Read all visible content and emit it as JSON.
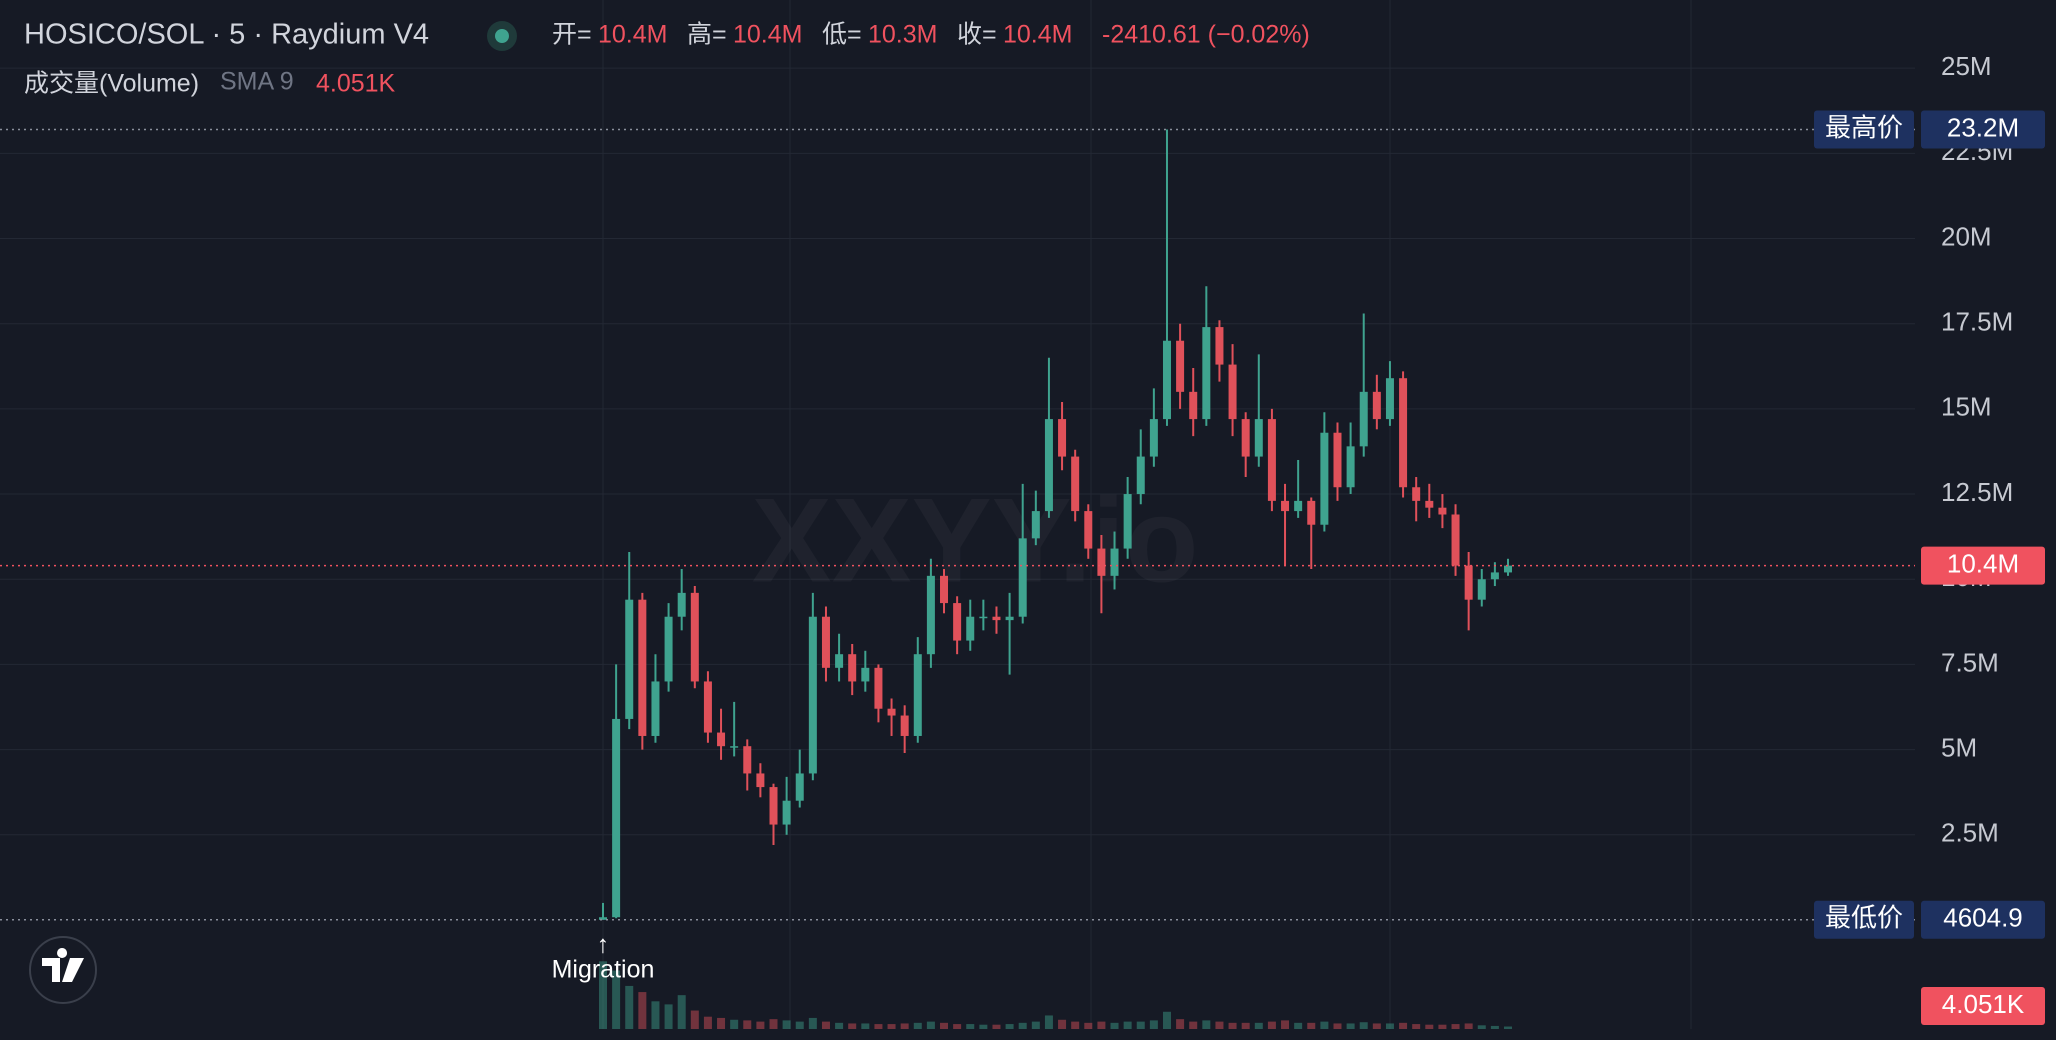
{
  "chart_data": {
    "type": "candlestick",
    "title": "HOSICO/SOL · 5 · Raydium V4",
    "ohlc_header": [
      {
        "name": "开=",
        "value": 10400000,
        "label": "10.4M"
      },
      {
        "name": "高=",
        "value": 10400000,
        "label": "10.4M"
      },
      {
        "name": "低=",
        "value": 10300000,
        "label": "10.3M"
      },
      {
        "name": "收=",
        "value": 10400000,
        "label": "10.4M"
      }
    ],
    "change": "-2410.61 (−0.02%)",
    "volume_title": "成交量(Volume)",
    "volume_sma": "SMA 9",
    "volume_last": {
      "value": 4051,
      "label": "4.051K"
    },
    "watermark": "XXYY.io",
    "annotation": {
      "arrow": "↑",
      "text": "Migration"
    },
    "up_color": "#3fa38f",
    "down_color": "#e0515a",
    "grid": true,
    "ylim": [
      -3200000,
      27000000
    ],
    "yticks": [
      {
        "value": 2500000,
        "label": "2.5M"
      },
      {
        "value": 5000000,
        "label": "5M"
      },
      {
        "value": 7500000,
        "label": "7.5M"
      },
      {
        "value": 10000000,
        "label": "10M"
      },
      {
        "value": 12500000,
        "label": "12.5M"
      },
      {
        "value": 15000000,
        "label": "15M"
      },
      {
        "value": 17500000,
        "label": "17.5M"
      },
      {
        "value": 20000000,
        "label": "20M"
      },
      {
        "value": 22500000,
        "label": "22.5M"
      },
      {
        "value": 25000000,
        "label": "25M"
      }
    ],
    "high_marker": {
      "name": "最高价",
      "value": 23200000,
      "label": "23.2M"
    },
    "low_marker": {
      "name": "最低价",
      "value": 4604.9,
      "label": "4604.9"
    },
    "last_price": {
      "value": 10400000,
      "label": "10.4M"
    },
    "categories": [
      null,
      null,
      null,
      null,
      null,
      null,
      null,
      null,
      null,
      null,
      null,
      null,
      null,
      null,
      null,
      null,
      null,
      null,
      null,
      null,
      null,
      null,
      null,
      null,
      null,
      null,
      null,
      null,
      null,
      null,
      null,
      null,
      null,
      null,
      null,
      null,
      null,
      null,
      null,
      null,
      null,
      null,
      null,
      null,
      null,
      null,
      null,
      null,
      null,
      null,
      null,
      null,
      null,
      null,
      null,
      null,
      null,
      null,
      null,
      null,
      null,
      null,
      null,
      null,
      null,
      null,
      null,
      null,
      null,
      null
    ],
    "open": [
      4604.9,
      80000.0,
      5900000.0,
      9400000.0,
      5400000.0,
      7000000.0,
      8900000.0,
      9600000.0,
      7000000.0,
      5500000.0,
      5100000.0,
      5100000.0,
      4300000.0,
      3900000.0,
      2800000.0,
      3500000.0,
      4300000.0,
      8900000.0,
      7400000.0,
      7800000.0,
      7000000.0,
      7400000.0,
      6200000.0,
      6000000.0,
      5400000.0,
      7800000.0,
      10100000.0,
      9300000.0,
      8200000.0,
      8900000.0,
      8900000.0,
      8800000.0,
      8900000.0,
      11200000.0,
      12000000.0,
      14700000.0,
      13600000.0,
      12000000.0,
      10900000.0,
      10100000.0,
      10900000.0,
      12500000.0,
      13600000.0,
      14700000.0,
      17000000.0,
      15500000.0,
      14700000.0,
      17400000.0,
      16300000.0,
      14700000.0,
      13600000.0,
      14700000.0,
      12300000.0,
      12000000.0,
      12300000.0,
      11600000.0,
      14300000.0,
      12700000.0,
      13900000.0,
      15500000.0,
      14700000.0,
      15900000.0,
      12700000.0,
      12300000.0,
      12100000.0,
      11900000.0,
      10400000.0,
      9400000.0,
      10000000.0,
      10200000.0
    ],
    "high": [
      500000.0,
      7500000.0,
      10800000.0,
      9600000.0,
      7800000.0,
      9300000.0,
      10300000.0,
      9800000.0,
      7300000.0,
      6200000.0,
      6400000.0,
      5300000.0,
      4600000.0,
      4000000.0,
      4200000.0,
      5000000.0,
      9600000.0,
      9200000.0,
      8400000.0,
      8100000.0,
      7900000.0,
      7500000.0,
      6500000.0,
      6300000.0,
      8300000.0,
      10600000.0,
      10300000.0,
      9500000.0,
      9400000.0,
      9400000.0,
      9200000.0,
      9600000.0,
      12800000.0,
      12600000.0,
      16500000.0,
      15200000.0,
      13800000.0,
      12200000.0,
      11300000.0,
      11400000.0,
      13000000.0,
      14400000.0,
      15600000.0,
      23200000.0,
      17500000.0,
      16200000.0,
      18600000.0,
      17600000.0,
      16900000.0,
      14900000.0,
      16600000.0,
      15000000.0,
      12800000.0,
      13500000.0,
      12400000.0,
      14900000.0,
      14600000.0,
      14600000.0,
      17800000.0,
      16000000.0,
      16400000.0,
      16100000.0,
      13000000.0,
      12800000.0,
      12500000.0,
      12200000.0,
      10800000.0,
      10300000.0,
      10500000.0,
      10600000.0
    ],
    "low": [
      4604.9,
      50000.0,
      5600000.0,
      5000000.0,
      5200000.0,
      6700000.0,
      8500000.0,
      6800000.0,
      5200000.0,
      4700000.0,
      4800000.0,
      3800000.0,
      3600000.0,
      2200000.0,
      2500000.0,
      3300000.0,
      4100000.0,
      7000000.0,
      7000000.0,
      6600000.0,
      6700000.0,
      5800000.0,
      5400000.0,
      4900000.0,
      5200000.0,
      7400000.0,
      9000000.0,
      7800000.0,
      7900000.0,
      8500000.0,
      8400000.0,
      7200000.0,
      8700000.0,
      11000000.0,
      11800000.0,
      13200000.0,
      11700000.0,
      10600000.0,
      9000000.0,
      9700000.0,
      10600000.0,
      12200000.0,
      13300000.0,
      14500000.0,
      15000000.0,
      14200000.0,
      14500000.0,
      15800000.0,
      14200000.0,
      13000000.0,
      13300000.0,
      12000000.0,
      10400000.0,
      11800000.0,
      10300000.0,
      11400000.0,
      12300000.0,
      12500000.0,
      13600000.0,
      14400000.0,
      14500000.0,
      12400000.0,
      11700000.0,
      11800000.0,
      11500000.0,
      10100000.0,
      8500000.0,
      9200000.0,
      9800000.0,
      10100000.0
    ],
    "close": [
      80000.0,
      5900000.0,
      9400000.0,
      5400000.0,
      7000000.0,
      8900000.0,
      9600000.0,
      7000000.0,
      5500000.0,
      5100000.0,
      5100000.0,
      4300000.0,
      3900000.0,
      2800000.0,
      3500000.0,
      4300000.0,
      8900000.0,
      7400000.0,
      7800000.0,
      7000000.0,
      7400000.0,
      6200000.0,
      6000000.0,
      5400000.0,
      7800000.0,
      10100000.0,
      9300000.0,
      8200000.0,
      8900000.0,
      8900000.0,
      8800000.0,
      8900000.0,
      11200000.0,
      12000000.0,
      14700000.0,
      13600000.0,
      12000000.0,
      10900000.0,
      10100000.0,
      10900000.0,
      12500000.0,
      13600000.0,
      14700000.0,
      17000000.0,
      15500000.0,
      14700000.0,
      17400000.0,
      16300000.0,
      14700000.0,
      13600000.0,
      14700000.0,
      12300000.0,
      12000000.0,
      12300000.0,
      11600000.0,
      14300000.0,
      12700000.0,
      13900000.0,
      15500000.0,
      14700000.0,
      15900000.0,
      12700000.0,
      12300000.0,
      12100000.0,
      11900000.0,
      10400000.0,
      9400000.0,
      10000000.0,
      10200000.0,
      10400000.0
    ],
    "y2lim": [
      0,
      130000
    ],
    "volume": [
      110000,
      95000,
      70000,
      60000,
      45000,
      40000,
      55000,
      30000,
      20000,
      18000,
      15000,
      14000,
      12000,
      16000,
      14000,
      12000,
      18000,
      12000,
      10000,
      9000,
      9000,
      8000,
      8000,
      9000,
      10000,
      12000,
      10000,
      8000,
      8000,
      7000,
      7000,
      8000,
      10000,
      12000,
      22000,
      15000,
      12000,
      10000,
      12000,
      10000,
      12000,
      12000,
      14000,
      28000,
      16000,
      12000,
      14000,
      12000,
      10000,
      10000,
      10000,
      12000,
      14000,
      10000,
      10000,
      12000,
      9000,
      9000,
      11000,
      9000,
      9000,
      10000,
      8000,
      7000,
      7000,
      8000,
      9000,
      6000,
      5000,
      4051
    ]
  }
}
